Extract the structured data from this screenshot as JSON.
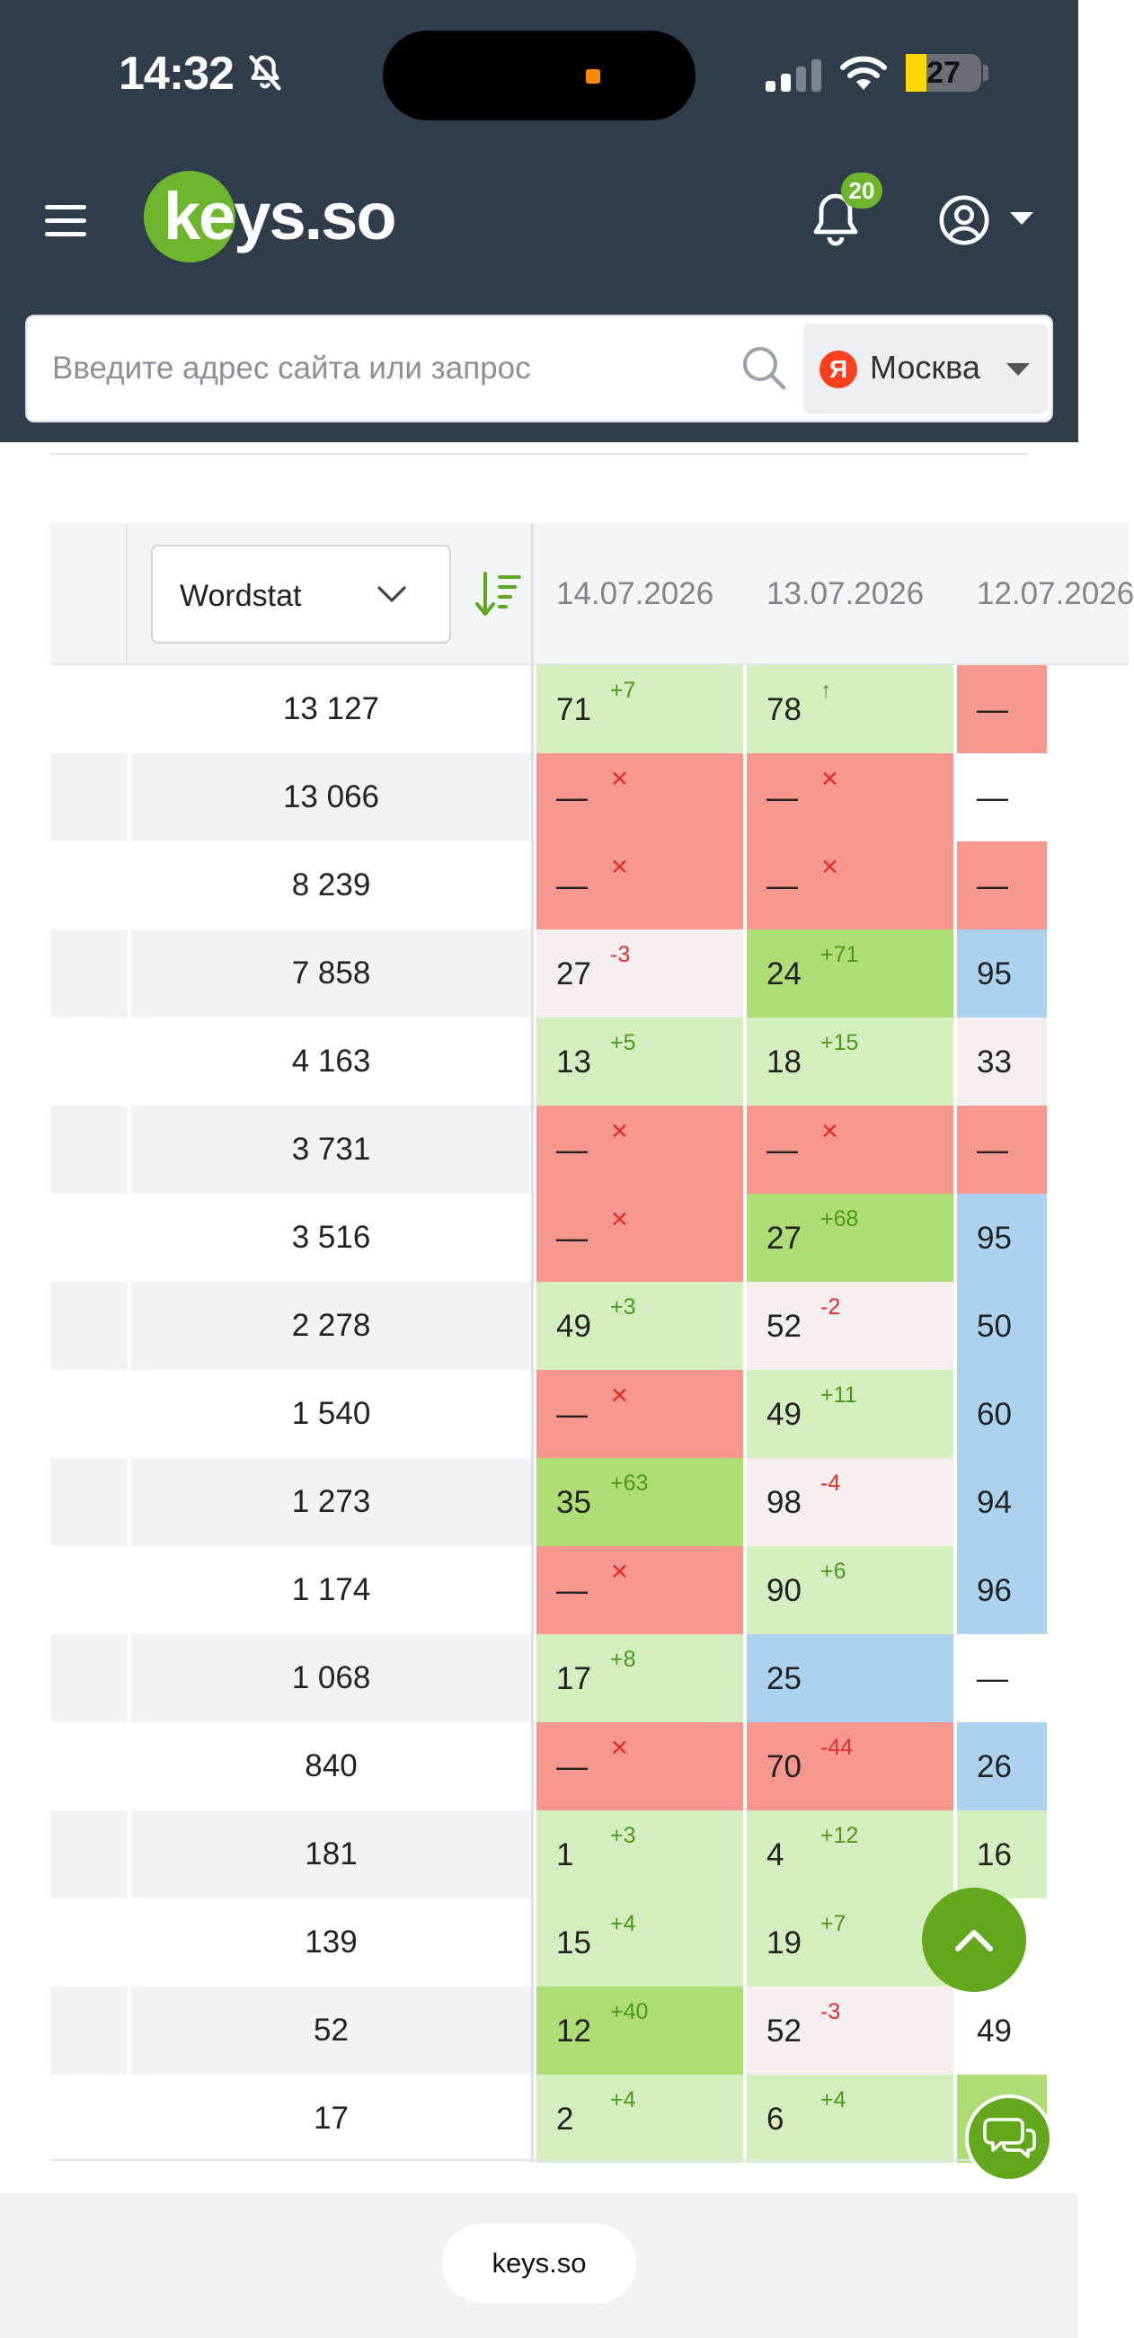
{
  "status_bar": {
    "time": "14:32",
    "battery": "27"
  },
  "header": {
    "logo_text": "keys.so",
    "notifications_count": "20"
  },
  "search": {
    "placeholder": "Введите адрес сайта или запрос",
    "value": "",
    "region": "Москва",
    "engine_badge": "Я"
  },
  "table": {
    "metric_select": "Wordstat",
    "dates": [
      "14.07.2026",
      "13.07.2026",
      "12.07.2026"
    ],
    "rows": [
      {
        "volume": "13 127",
        "c": [
          {
            "v": "71",
            "d": "+7",
            "t": "pos",
            "bg": "lgreen"
          },
          {
            "v": "78",
            "d": "↑",
            "t": "pos",
            "bg": "lgreen"
          },
          {
            "v": "—",
            "d": "",
            "t": "",
            "bg": "red"
          }
        ]
      },
      {
        "volume": "13 066",
        "c": [
          {
            "v": "—",
            "d": "✕",
            "t": "neg",
            "bg": "red"
          },
          {
            "v": "—",
            "d": "✕",
            "t": "neg",
            "bg": "red"
          },
          {
            "v": "—",
            "d": "",
            "t": "",
            "bg": "none"
          }
        ]
      },
      {
        "volume": "8 239",
        "c": [
          {
            "v": "—",
            "d": "✕",
            "t": "neg",
            "bg": "red"
          },
          {
            "v": "—",
            "d": "✕",
            "t": "neg",
            "bg": "red"
          },
          {
            "v": "—",
            "d": "",
            "t": "",
            "bg": "red"
          }
        ]
      },
      {
        "volume": "7 858",
        "c": [
          {
            "v": "27",
            "d": "-3",
            "t": "neg",
            "bg": "pink"
          },
          {
            "v": "24",
            "d": "+71",
            "t": "pos",
            "bg": "green"
          },
          {
            "v": "95",
            "d": "",
            "t": "",
            "bg": "blue"
          }
        ]
      },
      {
        "volume": "4 163",
        "c": [
          {
            "v": "13",
            "d": "+5",
            "t": "pos",
            "bg": "lgreen"
          },
          {
            "v": "18",
            "d": "+15",
            "t": "pos",
            "bg": "lgreen"
          },
          {
            "v": "33",
            "d": "",
            "t": "",
            "bg": "pink"
          }
        ]
      },
      {
        "volume": "3 731",
        "c": [
          {
            "v": "—",
            "d": "✕",
            "t": "neg",
            "bg": "red"
          },
          {
            "v": "—",
            "d": "✕",
            "t": "neg",
            "bg": "red"
          },
          {
            "v": "—",
            "d": "",
            "t": "",
            "bg": "red"
          }
        ]
      },
      {
        "volume": "3 516",
        "c": [
          {
            "v": "—",
            "d": "✕",
            "t": "neg",
            "bg": "red"
          },
          {
            "v": "27",
            "d": "+68",
            "t": "pos",
            "bg": "green"
          },
          {
            "v": "95",
            "d": "",
            "t": "",
            "bg": "blue"
          }
        ]
      },
      {
        "volume": "2 278",
        "c": [
          {
            "v": "49",
            "d": "+3",
            "t": "pos",
            "bg": "lgreen"
          },
          {
            "v": "52",
            "d": "-2",
            "t": "neg",
            "bg": "pink"
          },
          {
            "v": "50",
            "d": "",
            "t": "",
            "bg": "blue"
          }
        ]
      },
      {
        "volume": "1 540",
        "c": [
          {
            "v": "—",
            "d": "✕",
            "t": "neg",
            "bg": "red"
          },
          {
            "v": "49",
            "d": "+11",
            "t": "pos",
            "bg": "lgreen"
          },
          {
            "v": "60",
            "d": "",
            "t": "",
            "bg": "blue"
          }
        ]
      },
      {
        "volume": "1 273",
        "c": [
          {
            "v": "35",
            "d": "+63",
            "t": "pos",
            "bg": "green"
          },
          {
            "v": "98",
            "d": "-4",
            "t": "neg",
            "bg": "pink"
          },
          {
            "v": "94",
            "d": "",
            "t": "",
            "bg": "blue"
          }
        ]
      },
      {
        "volume": "1 174",
        "c": [
          {
            "v": "—",
            "d": "✕",
            "t": "neg",
            "bg": "red"
          },
          {
            "v": "90",
            "d": "+6",
            "t": "pos",
            "bg": "lgreen"
          },
          {
            "v": "96",
            "d": "",
            "t": "",
            "bg": "blue"
          }
        ]
      },
      {
        "volume": "1 068",
        "c": [
          {
            "v": "17",
            "d": "+8",
            "t": "pos",
            "bg": "lgreen"
          },
          {
            "v": "25",
            "d": "",
            "t": "",
            "bg": "blue"
          },
          {
            "v": "—",
            "d": "",
            "t": "",
            "bg": "none"
          }
        ]
      },
      {
        "volume": "840",
        "c": [
          {
            "v": "—",
            "d": "✕",
            "t": "neg",
            "bg": "red"
          },
          {
            "v": "70",
            "d": "-44",
            "t": "neg",
            "bg": "red"
          },
          {
            "v": "26",
            "d": "",
            "t": "",
            "bg": "blue"
          }
        ]
      },
      {
        "volume": "181",
        "c": [
          {
            "v": "1",
            "d": "+3",
            "t": "pos",
            "bg": "lgreen"
          },
          {
            "v": "4",
            "d": "+12",
            "t": "pos",
            "bg": "lgreen"
          },
          {
            "v": "16",
            "d": "",
            "t": "",
            "bg": "lgreen"
          }
        ]
      },
      {
        "volume": "139",
        "c": [
          {
            "v": "15",
            "d": "+4",
            "t": "pos",
            "bg": "lgreen"
          },
          {
            "v": "19",
            "d": "+7",
            "t": "pos",
            "bg": "lgreen"
          },
          {
            "v": "",
            "d": "",
            "t": "",
            "bg": "none"
          }
        ]
      },
      {
        "volume": "52",
        "c": [
          {
            "v": "12",
            "d": "+40",
            "t": "pos",
            "bg": "green"
          },
          {
            "v": "52",
            "d": "-3",
            "t": "neg",
            "bg": "pink"
          },
          {
            "v": "49",
            "d": "",
            "t": "",
            "bg": "none"
          }
        ]
      },
      {
        "volume": "17",
        "c": [
          {
            "v": "2",
            "d": "+4",
            "t": "pos",
            "bg": "lgreen"
          },
          {
            "v": "6",
            "d": "+4",
            "t": "pos",
            "bg": "lgreen"
          },
          {
            "v": "",
            "d": "",
            "t": "",
            "bg": "green"
          }
        ]
      }
    ]
  },
  "browser": {
    "url": "keys.so"
  },
  "colors": {
    "header_bg": "#2f3c4a",
    "brand_green": "#6cb52d",
    "cell_red": "#f6988f",
    "cell_light_green": "#d5eebf",
    "cell_green": "#aedd76",
    "cell_blue": "#acd2ee"
  }
}
